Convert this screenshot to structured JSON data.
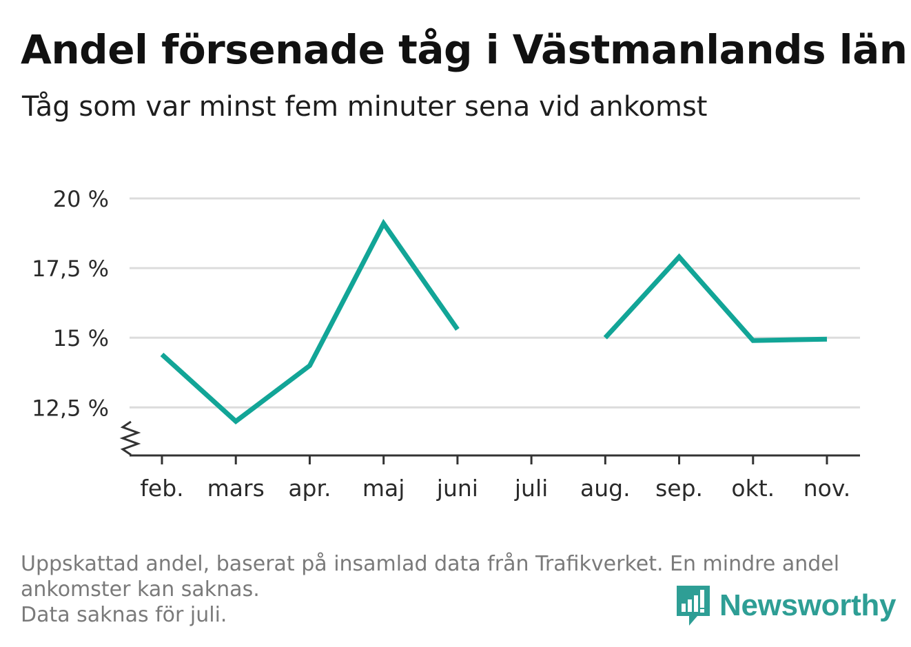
{
  "header": {
    "title": "Andel försenade tåg i Västmanlands län",
    "subtitle": "Tåg som var minst fem minuter sena vid ankomst"
  },
  "footnote": {
    "line1": "Uppskattad andel, baserat på insamlad data från Trafikverket. En mindre andel",
    "line2": "ankomster kan saknas.",
    "line3": "Data saknas för juli."
  },
  "brand": {
    "name": "Newsworthy",
    "icon": "newsworthy-logo-icon",
    "color": "#2e9e95"
  },
  "chart_data": {
    "type": "line",
    "categories": [
      "feb.",
      "mars",
      "apr.",
      "maj",
      "juni",
      "juli",
      "aug.",
      "sep.",
      "okt.",
      "nov."
    ],
    "series": [
      {
        "values": [
          14.4,
          12.0,
          14.0,
          19.1,
          15.3,
          null,
          15.0,
          17.9,
          14.9,
          14.95
        ],
        "color": "#12a597"
      }
    ],
    "ylim": [
      10.8,
      20
    ],
    "yticks": [
      {
        "value": 12.5,
        "label": "12,5 %"
      },
      {
        "value": 15,
        "label": "15 %"
      },
      {
        "value": 17.5,
        "label": "17,5 %"
      },
      {
        "value": 20,
        "label": "20 %"
      }
    ],
    "axis_break": true,
    "grid": true,
    "xlabel": "",
    "ylabel": ""
  }
}
